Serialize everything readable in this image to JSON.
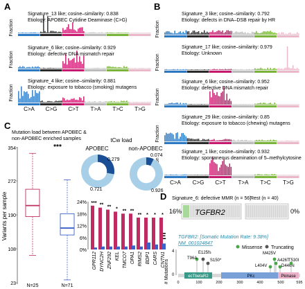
{
  "colors": {
    "ca": "#2b79c2",
    "cg": "#2a2a2a",
    "ct": "#c8176e",
    "ta": "#bbbbbb",
    "tc": "#79b33a",
    "tg": "#e9b9c9",
    "crimson": "#c02c62",
    "blue": "#3a62c9",
    "pie_light": "#a8cfe8",
    "pie_dark": "#1a4f96",
    "teal": "#2a8aa8",
    "green_dot": "#4aa64a",
    "gray_dot": "#555555",
    "domain_teal": "#3a9a8a",
    "domain_pk": "#7aa0d8",
    "domain_pkinase": "#e9b0c8",
    "stripe": "#b9e0b0"
  },
  "panel_letters": [
    "A",
    "B",
    "C",
    "D",
    "E"
  ],
  "axis_label_fraction": "Fraction",
  "mutation_classes": [
    "C>A",
    "C>G",
    "C>T",
    "T>A",
    "T>C",
    "T>G"
  ],
  "panel_a": {
    "signatures": [
      {
        "line1": "Signature_13 like; cosine–similarity: 0.838",
        "line2": "Etiology: APOBEC Cytidine Deaminase (C>G)"
      },
      {
        "line1": "Signature_6 like; cosine–similarity: 0.929",
        "line2": "Etiology: defective DNA mismatch repair"
      },
      {
        "line1": "Signature_4 like; cosine–similarity: 0.881",
        "line2": "Etiology: exposure to tobacco (smoking) mutagens"
      }
    ]
  },
  "panel_b": {
    "signatures": [
      {
        "line1": "Signature_3 like; cosine–similarity: 0.792",
        "line2": "Etiology: defects in DNA–DSB repair by HR"
      },
      {
        "line1": "Signature_17 like; cosine–similarity: 0.979",
        "line2": "Etiology: Unknown"
      },
      {
        "line1": "Signature_6 like; cosine–similarity: 0.952",
        "line2": "Etiology: defective DNA mismatch repair"
      },
      {
        "line1": "Signature_29 like; cosine–similarity: 0.85",
        "line2": "Etiology: exposure to tobacco (chewing) mutagens"
      },
      {
        "line1": "Signature_1 like; cosine–similarity: 0.932",
        "line2": "Etiology: spontaneous deamination of 5–methylcytosine"
      }
    ]
  },
  "panel_c": {
    "title_line1": "Mutation load between APOBEC &",
    "title_line2": "non-APOBEC enriched samples",
    "ylabel": "Variants per sample",
    "yticks": [
      "354",
      "272",
      "190",
      "108",
      "23"
    ],
    "significance": "***",
    "n_labels": [
      "N=25",
      "N=71"
    ],
    "tcw_label": "tCw load",
    "pie_titles": [
      "APOBEC",
      "non-APOBEC"
    ],
    "pie_values": [
      {
        "dark": "0.279",
        "light": "0.721"
      },
      {
        "dark": "0.074",
        "light": "0.926"
      }
    ],
    "pct_ticks": [
      "24%",
      "18%",
      "12%",
      "6%",
      "0%"
    ]
  },
  "chart_data": [
    {
      "type": "box",
      "ylabel": "Variants per sample",
      "ylim": [
        23,
        354
      ],
      "groups": [
        {
          "n": 25,
          "q1": 185,
          "median": 212,
          "q3": 252,
          "whisker_low": 90,
          "whisker_high": 340
        },
        {
          "n": 71,
          "q1": 140,
          "median": 157,
          "q3": 192,
          "whisker_low": 30,
          "whisker_high": 275
        }
      ]
    },
    {
      "type": "bar",
      "ylim": [
        0,
        24
      ],
      "categories": [
        "GPR112",
        "DYNC2H",
        "ZNF292",
        "KEL",
        "TMCO7",
        "OPA1",
        "RIMS2",
        "BDP1",
        "CARS",
        "CNTN1"
      ],
      "significance": [
        "***",
        "**",
        "**",
        "*",
        "**",
        "**",
        "**",
        "*",
        "*",
        "*"
      ],
      "series": [
        {
          "values": [
            22,
            21,
            20,
            19,
            18,
            18,
            16,
            16,
            16,
            16
          ]
        },
        {
          "values": [
            1.0,
            1.5,
            1.5,
            1.5,
            1.5,
            2.0,
            1.5,
            3.5,
            2.5,
            3.0
          ]
        }
      ]
    },
    {
      "type": "pie",
      "slices": [
        {
          "label": "0.279",
          "value": 0.279
        },
        {
          "label": "0.721",
          "value": 0.721
        }
      ]
    },
    {
      "type": "pie",
      "slices": [
        {
          "label": "0.074",
          "value": 0.074
        },
        {
          "label": "0.926",
          "value": 0.926
        }
      ]
    }
  ],
  "panel_d": {
    "left_label": "Signature_6: defective MMR (n = 56)",
    "right_label": "Rest (n = 40)",
    "left_pct": "16%",
    "gene": "TGFBR2",
    "right_pct": "0%"
  },
  "panel_e": {
    "title": "TGFBR2: [Somatic Mutation Rate: 9.38%]",
    "accession": "NM_001024847",
    "ylabel": "# Mutations",
    "legend": [
      "Missense",
      "Truncating"
    ],
    "mutations": [
      "E125fs",
      "T96A",
      "S150*",
      "M425V",
      "A426T",
      "L404V",
      "D446N",
      "T530I"
    ],
    "domains": [
      "ecTbetaR2",
      "PKc",
      "Pkinase"
    ],
    "axis_ticks": [
      "0",
      "100",
      "200",
      "300",
      "400",
      "500",
      "595"
    ]
  }
}
